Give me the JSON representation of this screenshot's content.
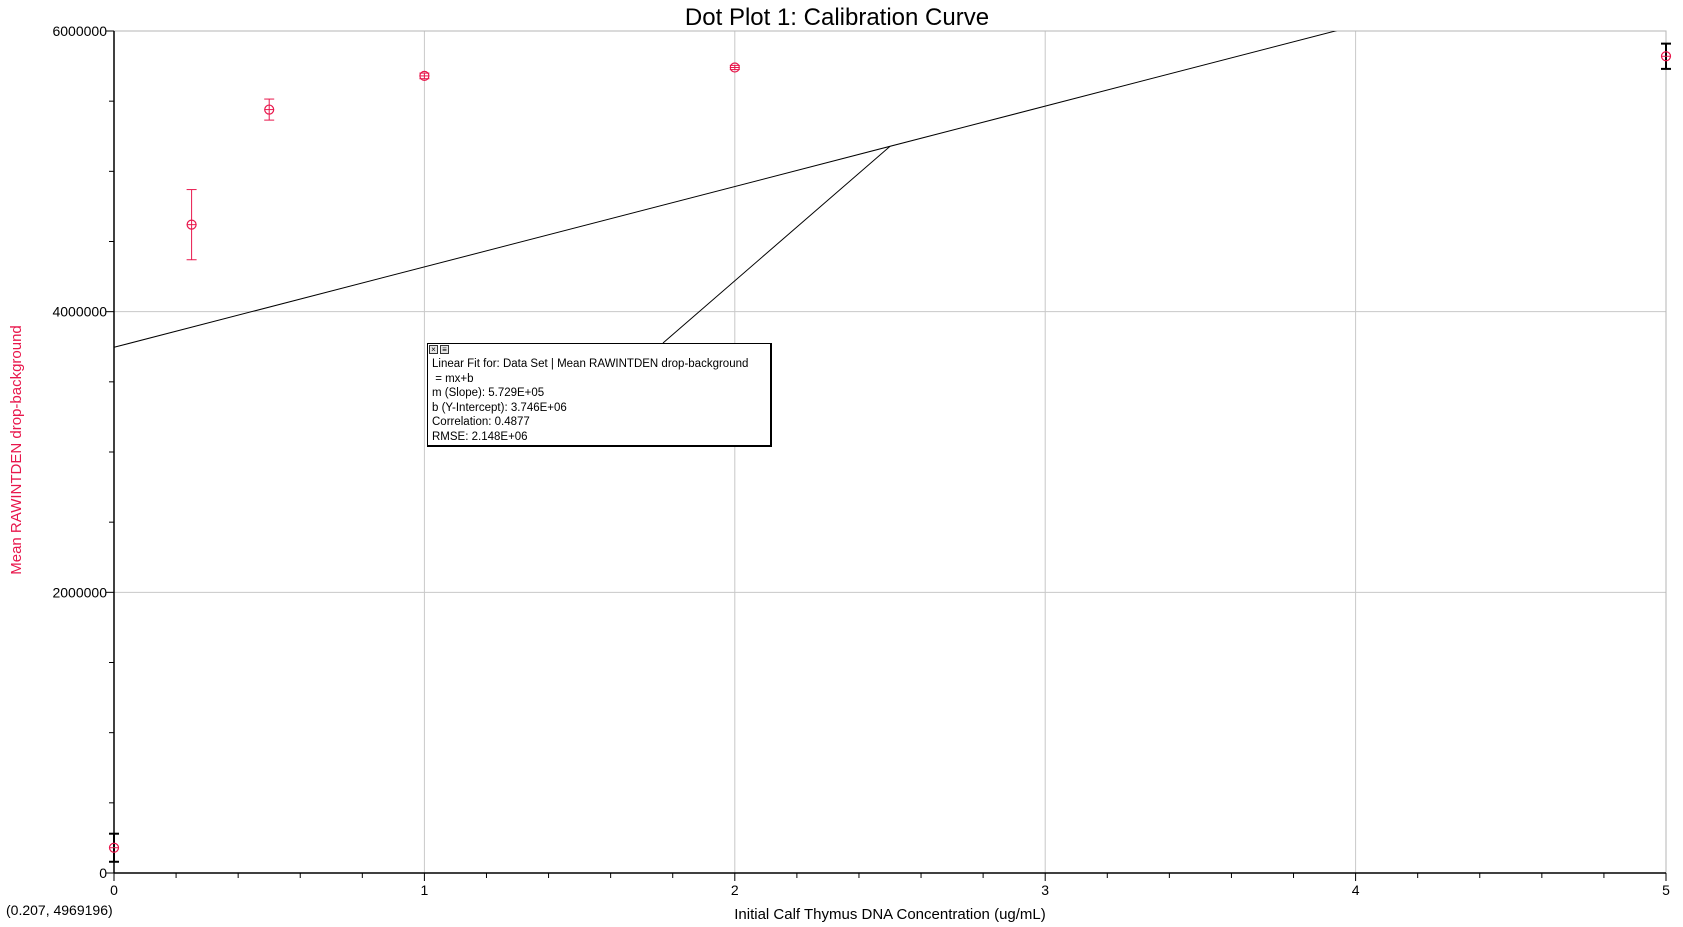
{
  "chart_data": {
    "type": "scatter",
    "title": "Dot Plot 1: Calibration Curve",
    "xlabel": "Initial Calf Thymus DNA Concentration (ug/mL)",
    "ylabel": "Mean RAWINTDEN drop-background",
    "xlim": [
      0,
      5
    ],
    "ylim": [
      0,
      6000000
    ],
    "x_ticks": [
      "0",
      "1",
      "2",
      "3",
      "4",
      "5"
    ],
    "y_ticks": [
      "0",
      "2000000",
      "4000000",
      "6000000"
    ],
    "grid": true,
    "series": [
      {
        "x": [
          0,
          0.25,
          0.5,
          1,
          2,
          5
        ],
        "y": [
          180000,
          4620000,
          5440000,
          5680000,
          5740000,
          5820000
        ],
        "y_err": [
          100000,
          250000,
          75000,
          20000,
          15000,
          90000
        ],
        "color": "#e8174c",
        "marker": "open-circle"
      }
    ],
    "fit_line": {
      "slope": 572900,
      "intercept": 3746000
    },
    "fit_box": {
      "lines": [
        "Linear Fit for: Data Set | Mean RAWINTDEN drop-background",
        " = mx+b",
        "m (Slope): 5.729E+05",
        "b (Y-Intercept): 3.746E+06",
        "Correlation: 0.4877",
        "RMSE: 2.148E+06"
      ],
      "callout_target": {
        "x": 2.5,
        "y": 5178250
      }
    },
    "cursor_readout": "(0.207, 4969196)"
  }
}
